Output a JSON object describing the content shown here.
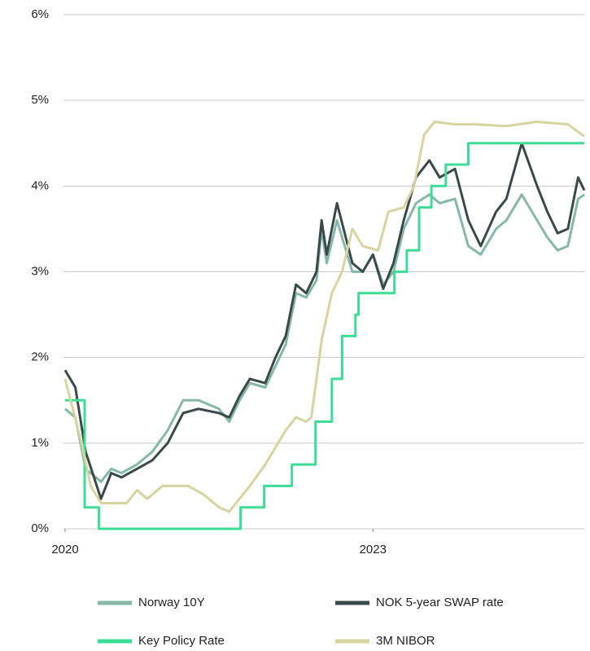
{
  "chart_data": {
    "type": "line",
    "xlim": [
      2020,
      2025.06
    ],
    "xticks": [
      2020,
      2023
    ],
    "ylim": [
      0,
      6
    ],
    "yticks": [
      {
        "value": 0,
        "label": "0%"
      },
      {
        "value": 1,
        "label": "1%"
      },
      {
        "value": 2,
        "label": "2%"
      },
      {
        "value": 3,
        "label": "3%"
      },
      {
        "value": 4,
        "label": "4%"
      },
      {
        "value": 5,
        "label": "5%"
      },
      {
        "value": 6,
        "label": "6%"
      }
    ],
    "grid": true,
    "legend": "bottom",
    "series": [
      {
        "name": "Norway 10Y",
        "color": "#86b8a8",
        "x": [
          2020,
          2020.1,
          2020.2,
          2020.35,
          2020.45,
          2020.55,
          2020.7,
          2020.85,
          2021.0,
          2021.15,
          2021.3,
          2021.5,
          2021.6,
          2021.7,
          2021.8,
          2021.95,
          2022.05,
          2022.15,
          2022.25,
          2022.35,
          2022.45,
          2022.5,
          2022.55,
          2022.65,
          2022.8,
          2022.9,
          2023.0,
          2023.1,
          2023.2,
          2023.3,
          2023.42,
          2023.55,
          2023.65,
          2023.8,
          2023.93,
          2024.05,
          2024.2,
          2024.3,
          2024.45,
          2024.6,
          2024.7,
          2024.8,
          2024.9,
          2025.0,
          2025.06
        ],
        "values": [
          1.4,
          1.3,
          0.7,
          0.55,
          0.7,
          0.65,
          0.75,
          0.9,
          1.15,
          1.5,
          1.5,
          1.4,
          1.25,
          1.5,
          1.7,
          1.65,
          1.9,
          2.15,
          2.75,
          2.7,
          2.9,
          3.5,
          3.1,
          3.6,
          3.0,
          3.0,
          3.2,
          2.85,
          3.0,
          3.5,
          3.8,
          3.9,
          3.8,
          3.85,
          3.3,
          3.2,
          3.5,
          3.6,
          3.9,
          3.6,
          3.4,
          3.25,
          3.3,
          3.85,
          3.9
        ]
      },
      {
        "name": "NOK 5-year SWAP rate",
        "color": "#3a4a4a",
        "x": [
          2020,
          2020.1,
          2020.2,
          2020.35,
          2020.45,
          2020.55,
          2020.7,
          2020.85,
          2021.0,
          2021.15,
          2021.3,
          2021.5,
          2021.6,
          2021.7,
          2021.8,
          2021.95,
          2022.05,
          2022.15,
          2022.25,
          2022.35,
          2022.45,
          2022.5,
          2022.55,
          2022.65,
          2022.8,
          2022.9,
          2023.0,
          2023.1,
          2023.2,
          2023.3,
          2023.42,
          2023.55,
          2023.65,
          2023.8,
          2023.93,
          2024.05,
          2024.2,
          2024.3,
          2024.45,
          2024.6,
          2024.7,
          2024.8,
          2024.9,
          2025.0,
          2025.06
        ],
        "values": [
          1.85,
          1.65,
          0.9,
          0.35,
          0.65,
          0.6,
          0.7,
          0.8,
          1.0,
          1.35,
          1.4,
          1.35,
          1.3,
          1.55,
          1.75,
          1.7,
          2.0,
          2.25,
          2.85,
          2.75,
          3.0,
          3.6,
          3.2,
          3.8,
          3.1,
          3.0,
          3.2,
          2.8,
          3.1,
          3.6,
          4.1,
          4.3,
          4.1,
          4.2,
          3.6,
          3.3,
          3.7,
          3.85,
          4.5,
          4.0,
          3.7,
          3.45,
          3.5,
          4.1,
          3.95
        ]
      },
      {
        "name": "Key Policy Rate",
        "color": "#3ddc97",
        "x": [
          2020,
          2020.19,
          2020.19,
          2020.33,
          2020.33,
          2021.71,
          2021.71,
          2021.94,
          2021.94,
          2022.21,
          2022.21,
          2022.44,
          2022.44,
          2022.6,
          2022.6,
          2022.7,
          2022.7,
          2022.83,
          2022.83,
          2022.86,
          2022.86,
          2023.21,
          2023.21,
          2023.33,
          2023.33,
          2023.45,
          2023.45,
          2023.57,
          2023.57,
          2023.71,
          2023.71,
          2023.93,
          2023.93,
          2025.06
        ],
        "values": [
          1.5,
          1.5,
          0.25,
          0.25,
          0,
          0,
          0.25,
          0.25,
          0.5,
          0.5,
          0.75,
          0.75,
          1.25,
          1.25,
          1.75,
          1.75,
          2.25,
          2.25,
          2.5,
          2.5,
          2.75,
          2.75,
          3.0,
          3.0,
          3.25,
          3.25,
          3.75,
          3.75,
          4.0,
          4.0,
          4.25,
          4.25,
          4.5,
          4.5
        ]
      },
      {
        "name": "3M NIBOR",
        "color": "#d8d4a0",
        "x": [
          2020,
          2020.15,
          2020.25,
          2020.35,
          2020.6,
          2020.7,
          2020.8,
          2020.95,
          2021.2,
          2021.35,
          2021.5,
          2021.6,
          2021.7,
          2021.8,
          2021.95,
          2022.05,
          2022.15,
          2022.25,
          2022.35,
          2022.4,
          2022.5,
          2022.6,
          2022.7,
          2022.8,
          2022.9,
          2023.05,
          2023.15,
          2023.3,
          2023.4,
          2023.5,
          2023.6,
          2023.8,
          2024.0,
          2024.3,
          2024.6,
          2024.9,
          2025.06
        ],
        "values": [
          1.75,
          1.05,
          0.5,
          0.3,
          0.3,
          0.45,
          0.35,
          0.5,
          0.5,
          0.4,
          0.25,
          0.2,
          0.35,
          0.5,
          0.75,
          0.95,
          1.15,
          1.3,
          1.25,
          1.3,
          2.2,
          2.75,
          3.0,
          3.5,
          3.3,
          3.25,
          3.7,
          3.75,
          4.0,
          4.6,
          4.75,
          4.72,
          4.72,
          4.7,
          4.75,
          4.72,
          4.58
        ]
      }
    ]
  }
}
